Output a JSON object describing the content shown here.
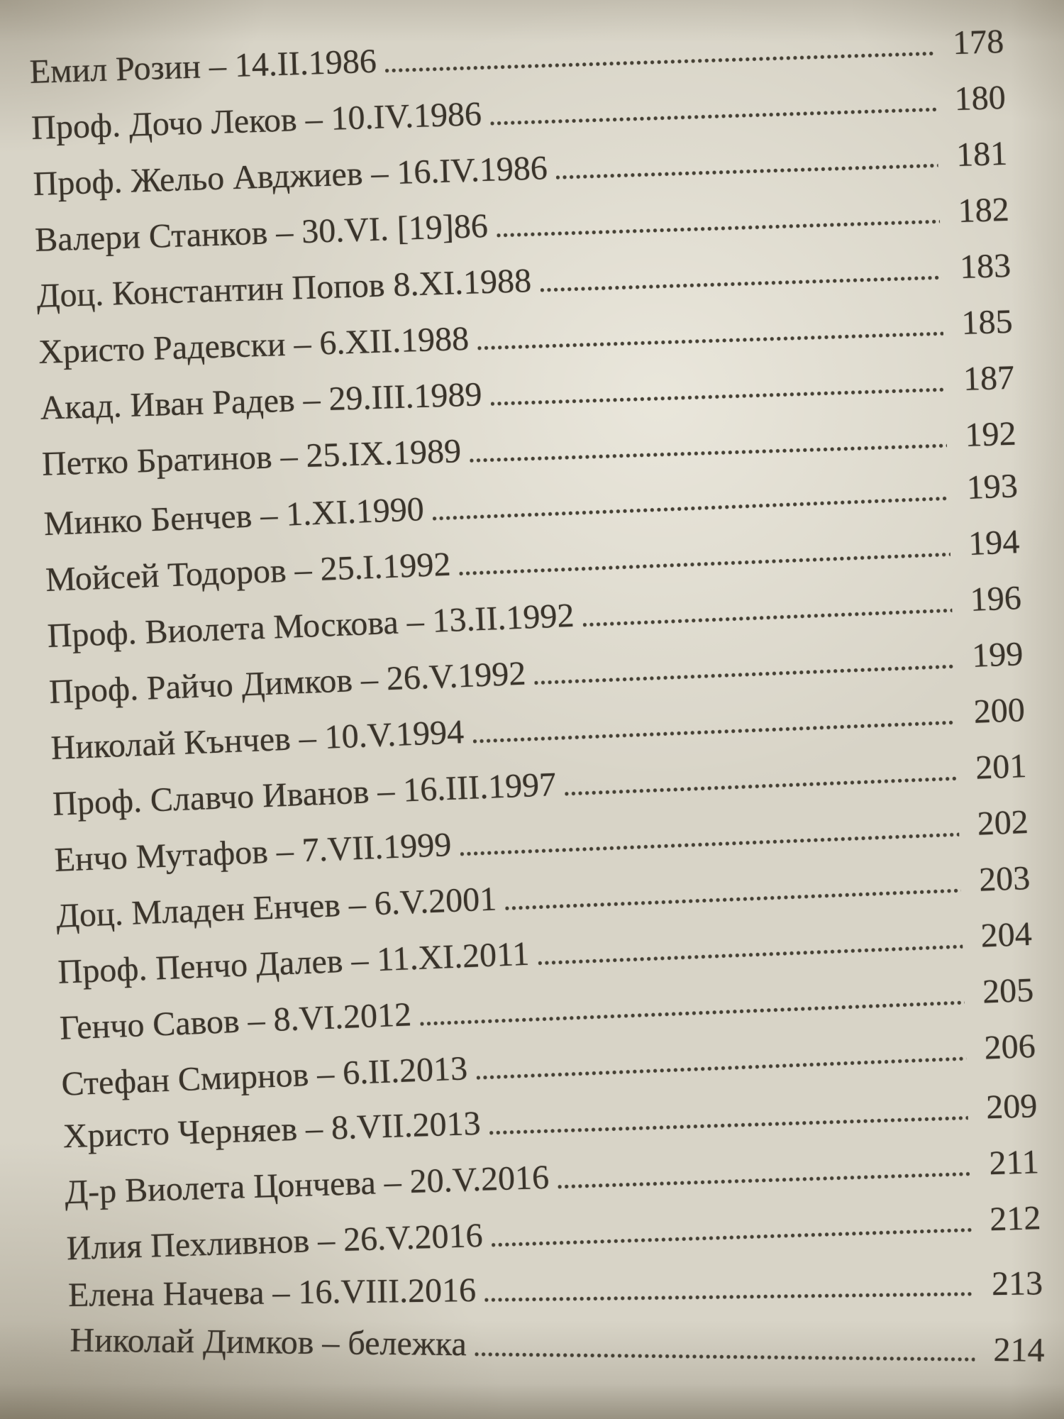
{
  "colors": {
    "paper": "#d8d4c7",
    "ink": "#3a342b"
  },
  "toc": {
    "entries": [
      {
        "title": "Емил Розин – 14.II.1986",
        "page": "178"
      },
      {
        "title": "Проф. Дочо Леков – 10.IV.1986",
        "page": "180"
      },
      {
        "title": "Проф. Жельо Авджиев – 16.IV.1986",
        "page": "181"
      },
      {
        "title": "Валери Станков – 30.VI. [19]86",
        "page": "182"
      },
      {
        "title": "Доц. Константин Попов 8.XI.1988",
        "page": "183"
      },
      {
        "title": "Христо Радевски – 6.XII.1988",
        "page": "185"
      },
      {
        "title": "Акад. Иван Радев – 29.III.1989",
        "page": "187"
      },
      {
        "title": "Петко Братинов – 25.IX.1989",
        "page": "192"
      },
      {
        "title": "Минко Бенчев – 1.XI.1990",
        "page": "193"
      },
      {
        "title": "Мойсей Тодоров – 25.I.1992",
        "page": "194"
      },
      {
        "title": "Проф. Виолета Москова – 13.II.1992",
        "page": "196"
      },
      {
        "title": "Проф. Райчо Димков – 26.V.1992",
        "page": "199"
      },
      {
        "title": "Николай Кънчев – 10.V.1994",
        "page": "200"
      },
      {
        "title": "Проф. Славчо Иванов – 16.III.1997",
        "page": "201"
      },
      {
        "title": "Енчо Мутафов – 7.VII.1999",
        "page": "202"
      },
      {
        "title": "Доц. Младен Енчев – 6.V.2001",
        "page": "203"
      },
      {
        "title": "Проф. Пенчо Далев – 11.XI.2011",
        "page": "204"
      },
      {
        "title": "Генчо Савов – 8.VI.2012",
        "page": "205"
      },
      {
        "title": "Стефан Смирнов – 6.II.2013",
        "page": "206"
      },
      {
        "title": "Христо Черняев – 8.VII.2013",
        "page": "209"
      },
      {
        "title": "Д-р Виолета Цончева – 20.V.2016",
        "page": "211"
      },
      {
        "title": "Илия Пехливнов – 26.V.2016",
        "page": "212"
      },
      {
        "title": "Елена Начева – 16.VIII.2016",
        "page": "213"
      },
      {
        "title": "Николай Димков – бележка",
        "page": "214"
      }
    ]
  }
}
